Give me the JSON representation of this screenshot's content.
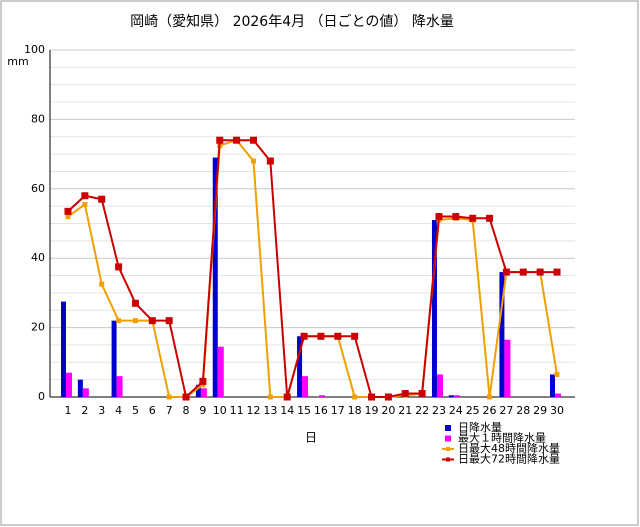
{
  "chart_data": {
    "type": "combo",
    "title": "岡崎（愛知県） 2026年4月 （日ごとの値） 降水量",
    "y_label": "mm",
    "x_label": "日",
    "categories": [
      "1",
      "2",
      "3",
      "4",
      "5",
      "6",
      "7",
      "8",
      "9",
      "10",
      "11",
      "12",
      "13",
      "14",
      "15",
      "16",
      "17",
      "18",
      "19",
      "20",
      "21",
      "22",
      "23",
      "24",
      "25",
      "26",
      "27",
      "28",
      "29",
      "30"
    ],
    "ylim": [
      0,
      100
    ],
    "yticks": [
      0,
      20,
      40,
      60,
      80,
      100
    ],
    "minor_yticks": [
      5,
      10,
      15,
      25,
      30,
      35,
      45,
      50,
      55,
      65,
      70,
      75,
      85,
      90,
      95
    ],
    "grid": true,
    "series": [
      {
        "name": "日降水量",
        "type": "bar",
        "color": "#0000cc",
        "values": [
          27.5,
          5,
          0,
          22,
          0,
          0,
          0,
          0,
          3.5,
          69,
          0,
          0,
          0,
          0,
          17.5,
          0,
          0,
          0,
          0,
          0,
          0,
          0,
          51,
          0.5,
          0,
          0,
          36,
          0,
          0,
          6.5
        ]
      },
      {
        "name": "最大１時間降水量",
        "type": "bar",
        "color": "#ff00ff",
        "values": [
          7,
          2.5,
          0,
          6,
          0,
          0,
          0,
          0,
          2.5,
          14.5,
          0,
          0,
          0,
          0,
          6,
          0.5,
          0,
          0,
          0,
          0,
          0,
          0,
          6.5,
          0.5,
          0,
          0,
          16.5,
          0,
          0,
          1
        ]
      },
      {
        "name": "日最大48時間降水量",
        "type": "line",
        "color": "#f0a000",
        "values": [
          52,
          55.5,
          32.5,
          22,
          22,
          22,
          0,
          0,
          3.5,
          72.5,
          74,
          68,
          0,
          0,
          17.5,
          17.5,
          17.5,
          0,
          0,
          0,
          0.5,
          1,
          51,
          51.5,
          51,
          0,
          36,
          36,
          36,
          6.5
        ]
      },
      {
        "name": "日最大72時間降水量",
        "type": "line",
        "color": "#cc0000",
        "values": [
          53.5,
          58,
          57,
          37.5,
          27,
          22,
          22,
          0,
          4.5,
          74,
          74,
          74,
          68,
          0,
          17.5,
          17.5,
          17.5,
          17.5,
          0,
          0,
          1,
          1,
          52,
          52,
          51.5,
          51.5,
          36,
          36,
          36,
          36
        ]
      }
    ]
  }
}
